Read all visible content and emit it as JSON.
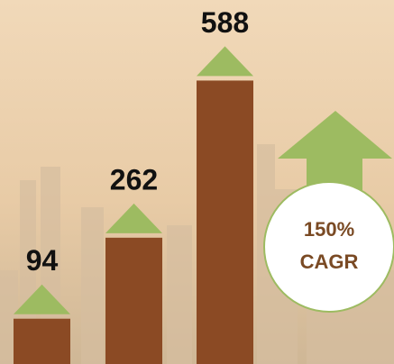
{
  "chart_data": {
    "type": "bar",
    "categories": [
      null,
      null,
      null
    ],
    "values": [
      94,
      262,
      588
    ],
    "color": "#8b4a24",
    "marker_color": "#9dbb61",
    "ylim": [
      0,
      600
    ],
    "annotations": [
      "150%",
      "CAGR"
    ]
  }
}
